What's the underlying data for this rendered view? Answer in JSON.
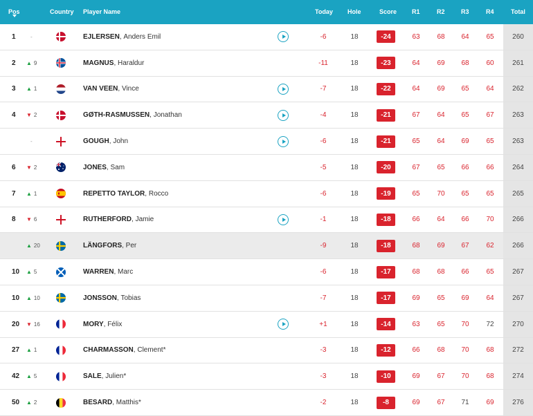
{
  "header": {
    "pos": "Pos",
    "country": "Country",
    "player": "Player Name",
    "today": "Today",
    "hole": "Hole",
    "score": "Score",
    "r1": "R1",
    "r2": "R2",
    "r3": "R3",
    "r4": "R4",
    "total": "Total"
  },
  "colors": {
    "accent": "#1aa3c2",
    "under_par": "#d9232d",
    "up": "#1a9e3f",
    "down": "#d9232d"
  },
  "rows": [
    {
      "pos": "1",
      "move": "-",
      "dir": "same",
      "country": "Denmark",
      "last": "EJLERSEN",
      "first": "Anders Emil",
      "play": true,
      "today": "-6",
      "hole": "18",
      "score": "-24",
      "r1": "63",
      "r2": "68",
      "r3": "64",
      "r4": "65",
      "total": "260"
    },
    {
      "pos": "2",
      "move": "9",
      "dir": "up",
      "country": "Iceland",
      "last": "MAGNUS",
      "first": "Haraldur",
      "play": false,
      "today": "-11",
      "hole": "18",
      "score": "-23",
      "r1": "64",
      "r2": "69",
      "r3": "68",
      "r4": "60",
      "total": "261"
    },
    {
      "pos": "3",
      "move": "1",
      "dir": "up",
      "country": "Netherlands",
      "last": "VAN VEEN",
      "first": "Vince",
      "play": true,
      "today": "-7",
      "hole": "18",
      "score": "-22",
      "r1": "64",
      "r2": "69",
      "r3": "65",
      "r4": "64",
      "total": "262"
    },
    {
      "pos": "4",
      "move": "2",
      "dir": "down",
      "country": "Denmark",
      "last": "GØTH-RASMUSSEN",
      "first": "Jonathan",
      "play": true,
      "today": "-4",
      "hole": "18",
      "score": "-21",
      "r1": "67",
      "r2": "64",
      "r3": "65",
      "r4": "67",
      "total": "263"
    },
    {
      "pos": "",
      "move": "-",
      "dir": "same",
      "country": "England",
      "last": "GOUGH",
      "first": "John",
      "play": true,
      "today": "-6",
      "hole": "18",
      "score": "-21",
      "r1": "65",
      "r2": "64",
      "r3": "69",
      "r4": "65",
      "total": "263"
    },
    {
      "pos": "6",
      "move": "2",
      "dir": "down",
      "country": "Australia",
      "last": "JONES",
      "first": "Sam",
      "play": false,
      "today": "-5",
      "hole": "18",
      "score": "-20",
      "r1": "67",
      "r2": "65",
      "r3": "66",
      "r4": "66",
      "total": "264"
    },
    {
      "pos": "7",
      "move": "1",
      "dir": "up",
      "country": "Spain",
      "last": "REPETTO TAYLOR",
      "first": "Rocco",
      "play": false,
      "today": "-6",
      "hole": "18",
      "score": "-19",
      "r1": "65",
      "r2": "70",
      "r3": "65",
      "r4": "65",
      "total": "265"
    },
    {
      "pos": "8",
      "move": "6",
      "dir": "down",
      "country": "England",
      "last": "RUTHERFORD",
      "first": "Jamie",
      "play": true,
      "today": "-1",
      "hole": "18",
      "score": "-18",
      "r1": "66",
      "r2": "64",
      "r3": "66",
      "r4": "70",
      "total": "266"
    },
    {
      "pos": "",
      "move": "20",
      "dir": "up",
      "country": "Sweden",
      "last": "LÄNGFORS",
      "first": "Per",
      "play": false,
      "today": "-9",
      "hole": "18",
      "score": "-18",
      "r1": "68",
      "r2": "69",
      "r3": "67",
      "r4": "62",
      "total": "266",
      "highlight": true
    },
    {
      "pos": "10",
      "move": "5",
      "dir": "up",
      "country": "Scotland",
      "last": "WARREN",
      "first": "Marc",
      "play": false,
      "today": "-6",
      "hole": "18",
      "score": "-17",
      "r1": "68",
      "r2": "68",
      "r3": "66",
      "r4": "65",
      "total": "267"
    },
    {
      "pos": "10",
      "move": "10",
      "dir": "up",
      "country": "Sweden",
      "last": "JONSSON",
      "first": "Tobias",
      "play": false,
      "today": "-7",
      "hole": "18",
      "score": "-17",
      "r1": "69",
      "r2": "65",
      "r3": "69",
      "r4": "64",
      "total": "267"
    },
    {
      "pos": "20",
      "move": "16",
      "dir": "down",
      "country": "France",
      "last": "MORY",
      "first": "Félix",
      "play": true,
      "today": "+1",
      "hole": "18",
      "score": "-14",
      "r1": "63",
      "r2": "65",
      "r3": "70",
      "r4": "72",
      "total": "270"
    },
    {
      "pos": "27",
      "move": "1",
      "dir": "up",
      "country": "France",
      "last": "CHARMASSON",
      "first": "Clement*",
      "play": false,
      "today": "-3",
      "hole": "18",
      "score": "-12",
      "r1": "66",
      "r2": "68",
      "r3": "70",
      "r4": "68",
      "total": "272"
    },
    {
      "pos": "42",
      "move": "5",
      "dir": "up",
      "country": "France",
      "last": "SALE",
      "first": "Julien*",
      "play": false,
      "today": "-3",
      "hole": "18",
      "score": "-10",
      "r1": "69",
      "r2": "67",
      "r3": "70",
      "r4": "68",
      "total": "274"
    },
    {
      "pos": "50",
      "move": "2",
      "dir": "up",
      "country": "Belgium",
      "last": "BESARD",
      "first": "Matthis*",
      "play": false,
      "today": "-2",
      "hole": "18",
      "score": "-8",
      "r1": "69",
      "r2": "67",
      "r3": "71",
      "r4": "69",
      "total": "276"
    }
  ]
}
